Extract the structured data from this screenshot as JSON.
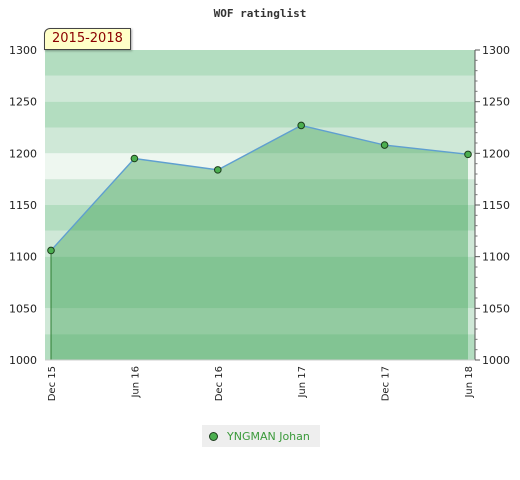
{
  "chart_data": {
    "type": "area",
    "title": "WOF ratinglist",
    "period_label": "2015-2018",
    "categories": [
      "Dec 15",
      "Jun 16",
      "Dec 16",
      "Jun 17",
      "Dec 17",
      "Jun 18"
    ],
    "series": [
      {
        "name": "YNGMAN Johan",
        "values": [
          1106,
          1195,
          1184,
          1227,
          1208,
          1199
        ]
      }
    ],
    "ylim": [
      1000,
      1300
    ],
    "yticks": [
      1000,
      1050,
      1100,
      1150,
      1200,
      1250,
      1300
    ],
    "y_axis_both_sides": true,
    "legend_position": "bottom",
    "colors": {
      "line": "#5f9fd0",
      "area": "#6ebd7f",
      "marker": "#4caf50",
      "marker_edge": "#1c3d1c",
      "band_light": "#f0f8f2",
      "band_mid": "#d0e9d8",
      "band_dark": "#b4deC0"
    }
  }
}
